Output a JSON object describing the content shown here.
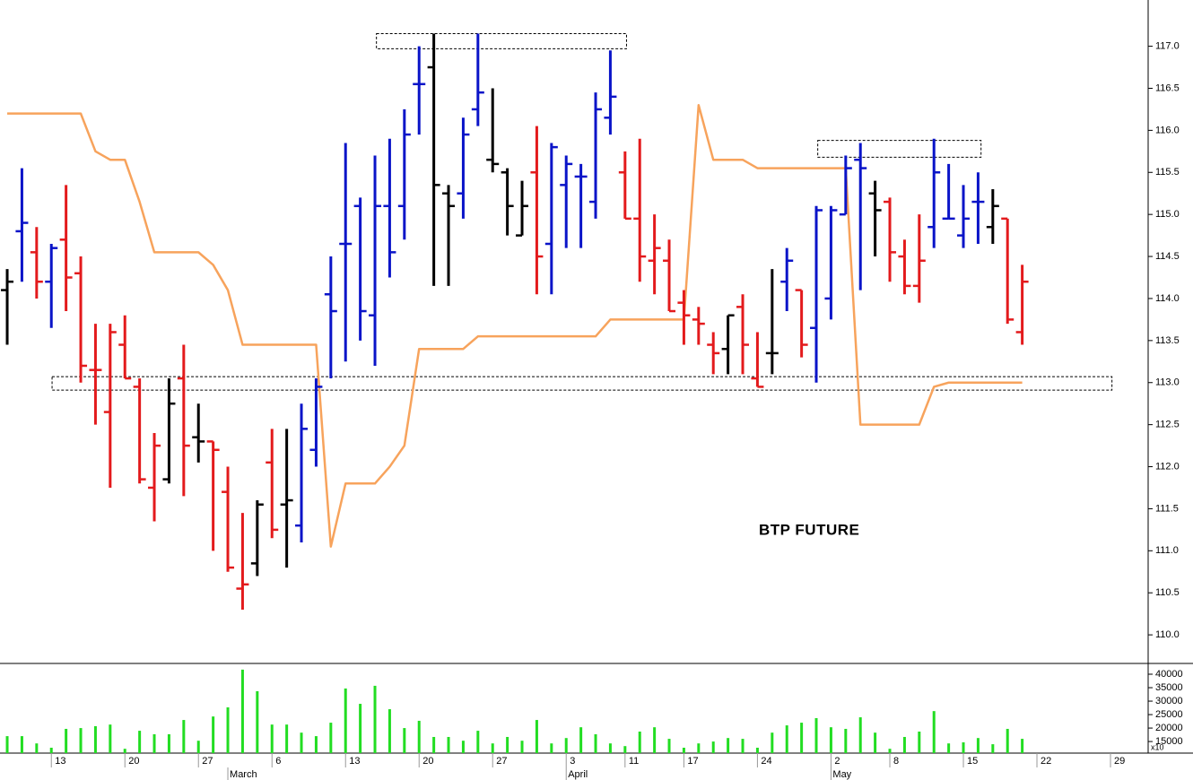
{
  "chart_data": {
    "type": "ohlc",
    "annotation": "BTP FUTURE",
    "palette": {
      "red": "#e31a1c",
      "blue": "#0a14c8",
      "black": "#000000"
    },
    "bar_colors": [
      "black",
      "blue",
      "red",
      "blue",
      "red",
      "red",
      "red",
      "red",
      "red",
      "red",
      "red",
      "black",
      "red",
      "black",
      "red",
      "red",
      "red",
      "black",
      "red",
      "black",
      "blue",
      "blue",
      "blue",
      "blue",
      "blue",
      "blue",
      "blue",
      "blue",
      "blue",
      "black",
      "black",
      "blue",
      "blue",
      "black",
      "black",
      "black",
      "red",
      "blue",
      "blue",
      "blue",
      "blue",
      "blue",
      "red",
      "red",
      "red",
      "red",
      "red",
      "red",
      "red",
      "black",
      "red",
      "red",
      "black",
      "blue",
      "red",
      "blue",
      "blue",
      "blue",
      "blue",
      "black",
      "red",
      "red",
      "red",
      "blue",
      "blue",
      "blue",
      "blue",
      "black",
      "red",
      "red"
    ],
    "open": [
      114.1,
      114.8,
      114.55,
      114.2,
      114.7,
      114.3,
      113.15,
      112.65,
      113.45,
      112.95,
      111.75,
      111.85,
      113.05,
      112.35,
      112.3,
      111.7,
      110.55,
      110.85,
      112.05,
      111.55,
      111.3,
      112.2,
      114.05,
      114.65,
      115.1,
      113.8,
      115.1,
      115.1,
      116.55,
      116.75,
      115.25,
      115.25,
      116.25,
      115.65,
      115.5,
      114.75,
      115.5,
      114.65,
      115.35,
      115.45,
      115.15,
      116.15,
      115.5,
      114.95,
      114.45,
      114.45,
      113.95,
      113.75,
      113.45,
      113.4,
      113.9,
      113.05,
      113.35,
      114.2,
      114.1,
      113.65,
      114.0,
      115.0,
      115.65,
      115.25,
      115.15,
      114.5,
      114.15,
      114.85,
      114.95,
      114.75,
      115.15,
      114.85,
      114.95,
      113.6
    ],
    "high": [
      114.35,
      115.55,
      114.85,
      114.65,
      115.35,
      114.5,
      113.7,
      113.7,
      113.8,
      113.05,
      112.4,
      113.05,
      113.45,
      112.75,
      112.3,
      112.0,
      111.45,
      111.6,
      112.45,
      112.45,
      112.75,
      113.05,
      114.5,
      115.85,
      115.2,
      115.7,
      115.9,
      116.25,
      117.0,
      117.15,
      115.35,
      116.15,
      117.15,
      116.5,
      115.55,
      115.4,
      116.05,
      115.85,
      115.7,
      115.6,
      116.45,
      116.95,
      115.75,
      115.9,
      115.0,
      114.7,
      114.1,
      113.9,
      113.6,
      113.8,
      114.05,
      113.6,
      114.35,
      114.6,
      114.1,
      115.1,
      115.1,
      115.7,
      115.85,
      115.4,
      115.2,
      114.7,
      115.0,
      115.9,
      115.6,
      115.35,
      115.5,
      115.3,
      114.95,
      114.4
    ],
    "low": [
      113.45,
      114.2,
      114.0,
      113.65,
      113.85,
      113.0,
      112.5,
      111.75,
      113.05,
      111.8,
      111.35,
      111.8,
      111.65,
      112.05,
      111.0,
      110.75,
      110.3,
      110.7,
      111.15,
      110.8,
      111.1,
      112.0,
      113.05,
      113.25,
      113.5,
      113.2,
      114.25,
      114.7,
      115.95,
      114.15,
      114.15,
      114.95,
      116.05,
      115.5,
      114.75,
      114.75,
      114.05,
      114.05,
      114.6,
      114.6,
      114.95,
      115.95,
      114.95,
      114.2,
      114.05,
      113.85,
      113.45,
      113.45,
      113.1,
      113.1,
      113.1,
      112.95,
      113.1,
      113.85,
      113.3,
      113.0,
      113.75,
      115.0,
      114.1,
      114.5,
      114.2,
      114.05,
      113.95,
      114.6,
      114.95,
      114.6,
      114.65,
      114.65,
      113.7,
      113.45
    ],
    "close": [
      114.2,
      114.9,
      114.2,
      114.6,
      114.25,
      113.2,
      113.15,
      113.6,
      113.05,
      111.85,
      112.25,
      112.75,
      112.25,
      112.3,
      112.2,
      110.8,
      110.6,
      111.55,
      111.25,
      111.6,
      112.45,
      112.95,
      113.85,
      114.65,
      113.85,
      115.1,
      114.55,
      115.95,
      116.55,
      115.35,
      115.1,
      115.95,
      116.45,
      115.6,
      115.1,
      115.1,
      114.5,
      115.8,
      115.6,
      115.45,
      116.25,
      116.4,
      114.95,
      114.5,
      114.6,
      113.85,
      113.8,
      113.7,
      113.35,
      113.8,
      113.45,
      112.95,
      113.35,
      114.45,
      113.45,
      115.05,
      115.05,
      115.55,
      115.55,
      115.05,
      114.55,
      114.15,
      114.45,
      115.5,
      114.95,
      114.95,
      115.15,
      115.1,
      113.75,
      114.2
    ],
    "line": {
      "color": "#f7a35c",
      "values": [
        116.2,
        116.2,
        116.2,
        116.2,
        116.2,
        116.2,
        115.75,
        115.65,
        115.65,
        115.15,
        114.55,
        114.55,
        114.55,
        114.55,
        114.4,
        114.1,
        113.45,
        113.45,
        113.45,
        113.45,
        113.45,
        113.45,
        111.05,
        111.8,
        111.8,
        111.8,
        112.0,
        112.25,
        113.4,
        113.4,
        113.4,
        113.4,
        113.55,
        113.55,
        113.55,
        113.55,
        113.55,
        113.55,
        113.55,
        113.55,
        113.55,
        113.75,
        113.75,
        113.75,
        113.75,
        113.75,
        113.75,
        116.3,
        115.65,
        115.65,
        115.65,
        115.55,
        115.55,
        115.55,
        115.55,
        115.55,
        115.55,
        115.55,
        112.5,
        112.5,
        112.5,
        112.5,
        112.5,
        112.95,
        113.0,
        113.0,
        113.0,
        113.0,
        113.0,
        113.0
      ]
    },
    "boxes": [
      {
        "x": [
          25.1,
          42.1
        ],
        "y": [
          116.97,
          117.15
        ]
      },
      {
        "x": [
          55.1,
          66.2
        ],
        "y": [
          115.68,
          115.88
        ]
      },
      {
        "x": [
          3.05,
          75.1
        ],
        "y": [
          112.91,
          113.07
        ]
      }
    ],
    "ylim": [
      109.66,
      117.55
    ],
    "yticks": [
      {
        "value": 110,
        "label": "110.0"
      },
      110.5,
      {
        "value": 111,
        "label": "111.0"
      },
      111.5,
      {
        "value": 112,
        "label": "112.0"
      },
      112.5,
      {
        "value": 113,
        "label": "113.0"
      },
      113.5,
      {
        "value": 114,
        "label": "114.0"
      },
      114.5,
      {
        "value": 115,
        "label": "115.0"
      },
      115.5,
      {
        "value": 116,
        "label": "116.0"
      },
      116.5,
      {
        "value": 117,
        "label": "117.0"
      }
    ],
    "xlim": [
      -0.49,
      77.56
    ],
    "xticks": [
      {
        "value": 3,
        "label": "13"
      },
      {
        "value": 8,
        "label": "20"
      },
      {
        "value": 13,
        "label": "27"
      },
      {
        "value": 18,
        "label": "6"
      },
      {
        "value": 23,
        "label": "13"
      },
      {
        "value": 28,
        "label": "20"
      },
      {
        "value": 33,
        "label": "27"
      },
      {
        "value": 38,
        "label": "3"
      },
      {
        "value": 42,
        "label": "11"
      },
      {
        "value": 46,
        "label": "17"
      },
      {
        "value": 51,
        "label": "24"
      },
      {
        "value": 56,
        "label": "2"
      },
      {
        "value": 60,
        "label": "8"
      },
      {
        "value": 65,
        "label": "15"
      },
      {
        "value": 70,
        "label": "22"
      },
      {
        "value": 75,
        "label": "29"
      }
    ],
    "month_ticks": [
      {
        "value": 15,
        "label": "March"
      },
      {
        "value": 38,
        "label": "April"
      },
      {
        "value": 56,
        "label": "May"
      }
    ],
    "volume": {
      "color": "#22dd22",
      "scale_label": "x10",
      "values": [
        17000,
        17000,
        14300,
        12700,
        19700,
        20000,
        20700,
        21300,
        12300,
        19000,
        17700,
        17700,
        23000,
        15300,
        24300,
        27700,
        41700,
        33700,
        21300,
        21300,
        18300,
        17000,
        22000,
        34700,
        29000,
        35700,
        27000,
        20000,
        22700,
        16700,
        16700,
        15300,
        19000,
        14300,
        16700,
        15300,
        23000,
        14300,
        16300,
        20300,
        17700,
        14300,
        13300,
        18700,
        20300,
        16000,
        12700,
        14300,
        15000,
        16300,
        16000,
        12700,
        18300,
        21000,
        22000,
        23700,
        20300,
        19700,
        24000,
        18300,
        12300,
        16700,
        18700,
        26300,
        14300,
        14700,
        16300,
        14000,
        19700,
        16000
      ],
      "ylim": [
        10700,
        44000
      ],
      "yticks": [
        40000,
        35000,
        30000,
        25000,
        20000,
        15000
      ]
    }
  }
}
